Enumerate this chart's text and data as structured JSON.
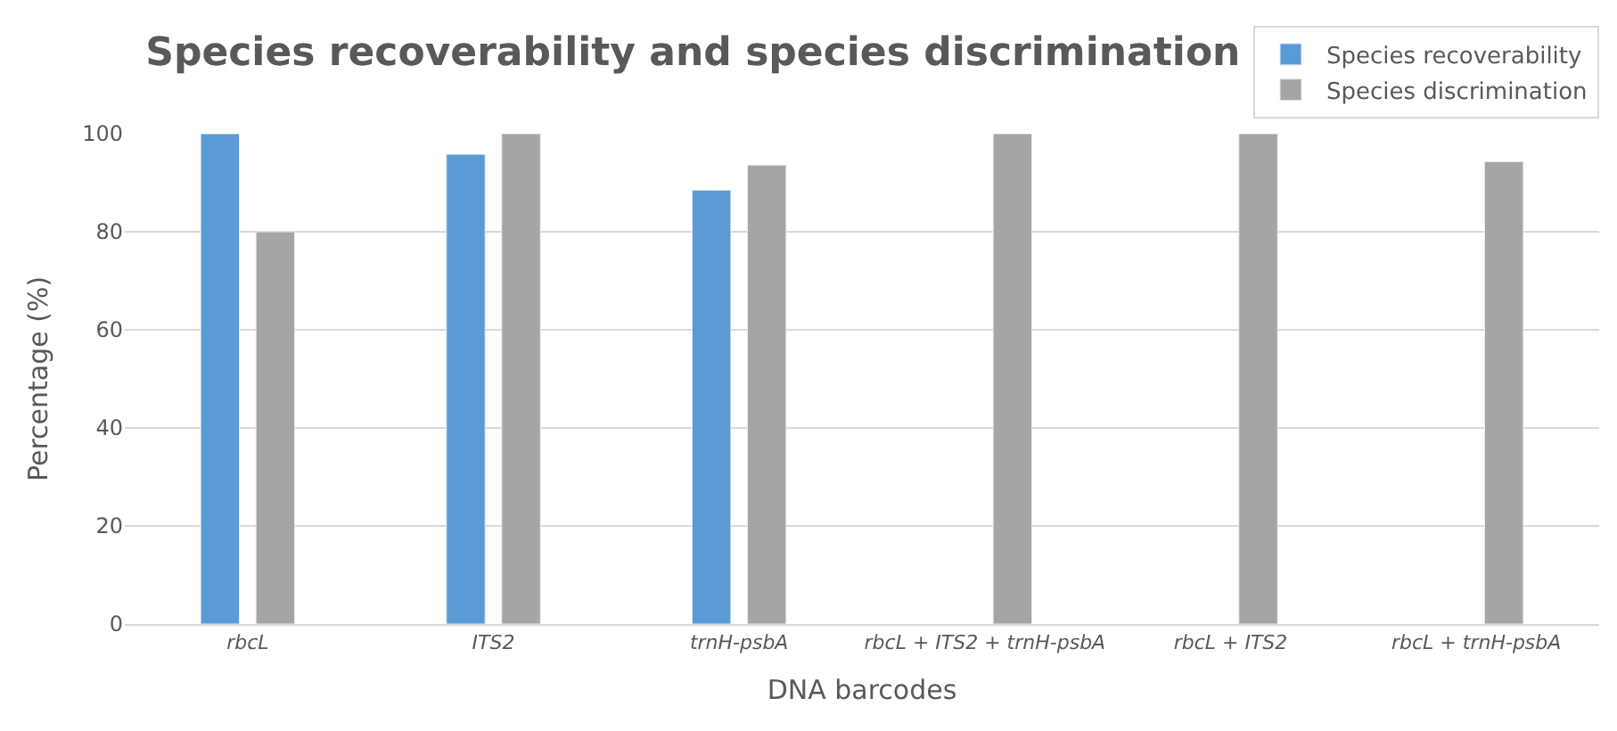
{
  "chart_data": {
    "type": "bar",
    "title": "Species recoverability and species discrimination",
    "xlabel": "DNA barcodes",
    "ylabel": "Percentage (%)",
    "categories": [
      "rbcL",
      "ITS2",
      "trnH-psbA",
      "rbcL + ITS2 + trnH-psbA",
      "rbcL + ITS2",
      "rbcL + trnH-psbA"
    ],
    "series": [
      {
        "name": "Species recoverability",
        "color": "#5b9bd5",
        "values": [
          100,
          95.8,
          88.5,
          null,
          null,
          null
        ]
      },
      {
        "name": "Species discrimination",
        "color": "#a5a5a5",
        "values": [
          80,
          100,
          93.6,
          100,
          100,
          94.3
        ]
      }
    ],
    "ylim": [
      0,
      100
    ],
    "yticks": [
      0,
      20,
      40,
      60,
      80,
      100
    ],
    "grid": "y",
    "legend": "top right"
  }
}
